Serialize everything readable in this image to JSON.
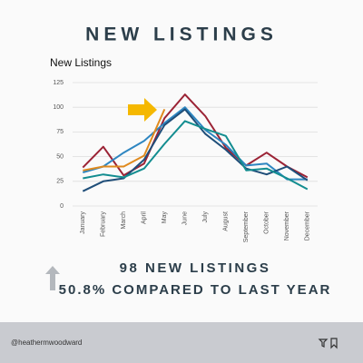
{
  "header": {
    "title": "NEW LISTINGS"
  },
  "chart_data": {
    "type": "line",
    "title": "New Listings",
    "categories": [
      "January",
      "February",
      "March",
      "April",
      "May",
      "June",
      "July",
      "August",
      "September",
      "October",
      "November",
      "December"
    ],
    "series": [
      {
        "color": "#9b2335",
        "values": [
          39,
          60,
          31,
          43,
          89,
          113,
          91,
          59,
          41,
          54,
          40,
          29
        ]
      },
      {
        "color": "#2e86c1",
        "values": [
          34,
          40,
          54,
          66,
          84,
          100,
          77,
          62,
          41,
          43,
          27,
          27
        ]
      },
      {
        "color": "#1f4e79",
        "values": [
          15,
          25,
          28,
          47,
          82,
          98,
          73,
          57,
          38,
          32,
          40,
          26
        ]
      },
      {
        "color": "#138d90",
        "values": [
          28,
          32,
          29,
          38,
          63,
          86,
          78,
          71,
          36,
          38,
          28,
          17
        ]
      },
      {
        "color": "#e08a1e",
        "values": [
          36,
          40,
          40,
          51,
          98,
          null,
          null,
          null,
          null,
          null,
          null,
          null
        ]
      }
    ],
    "ylim": [
      0,
      125
    ],
    "yticks": [
      0,
      25,
      50,
      75,
      100,
      125
    ],
    "grid": true
  },
  "stats": [
    "98 NEW LISTINGS",
    "50.8% COMPARED TO LAST YEAR"
  ],
  "footer": {
    "handle": "@heathermwoodward"
  }
}
